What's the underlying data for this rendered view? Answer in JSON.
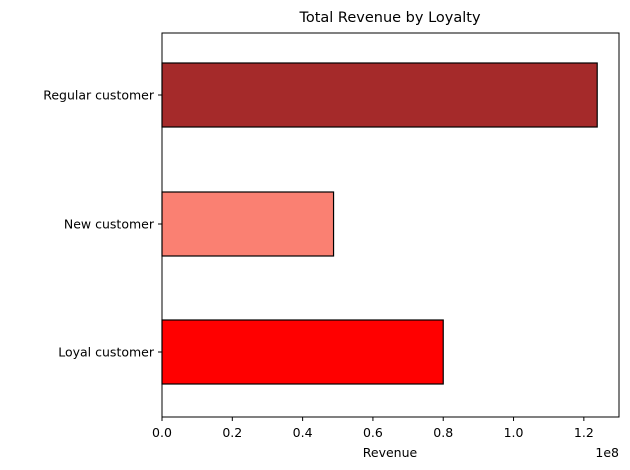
{
  "chart_data": {
    "type": "bar",
    "orientation": "horizontal",
    "title": "Total Revenue by Loyalty",
    "xlabel": "Revenue",
    "ylabel": "",
    "axis_multiplier": "1e8",
    "categories": [
      "Loyal customer",
      "New customer",
      "Regular customer"
    ],
    "values": [
      80000000,
      48800000,
      123800000
    ],
    "colors": [
      "#ff0000",
      "#fa8072",
      "#a52a2a"
    ],
    "edge_color": "#000000",
    "xlim": [
      0,
      130000000
    ],
    "xticks": [
      {
        "value": 0,
        "label": "0.0"
      },
      {
        "value": 20000000,
        "label": "0.2"
      },
      {
        "value": 40000000,
        "label": "0.4"
      },
      {
        "value": 60000000,
        "label": "0.6"
      },
      {
        "value": 80000000,
        "label": "0.8"
      },
      {
        "value": 100000000,
        "label": "1.0"
      },
      {
        "value": 120000000,
        "label": "1.2"
      }
    ],
    "grid": false,
    "legend": "none"
  }
}
